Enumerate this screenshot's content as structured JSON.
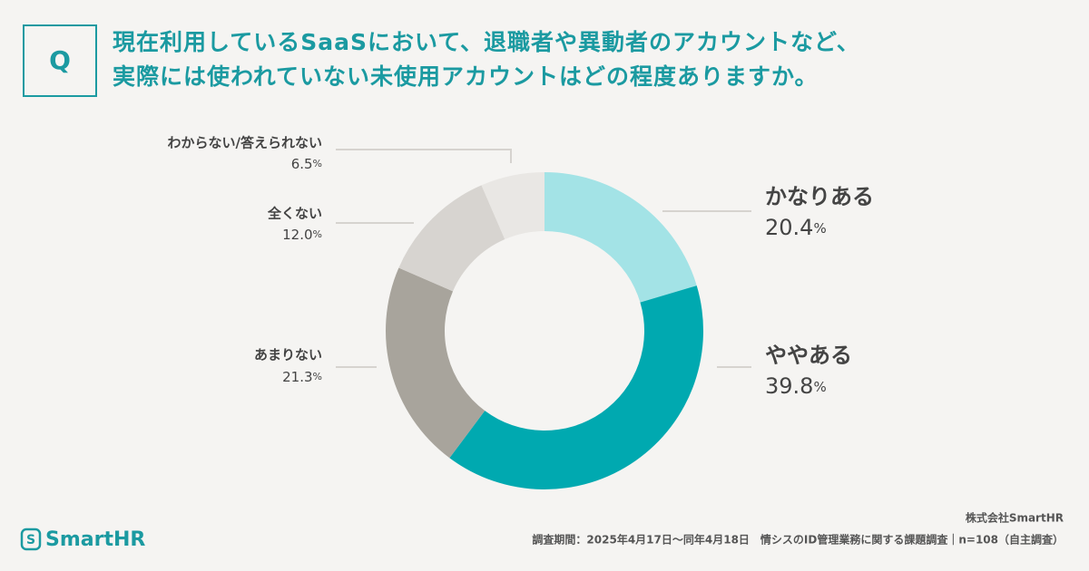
{
  "header": {
    "q_mark": "Q",
    "question": [
      "現在利用しているSaaSにおいて、退職者や異動者のアカウントなど、",
      "実際には使われていない未使用アカウントはどの程度ありますか。"
    ]
  },
  "chart_data": {
    "type": "donut",
    "categories": [
      "かなりある",
      "ややある",
      "あまりない",
      "全くない",
      "わからない/答えられない"
    ],
    "values": [
      20.4,
      39.8,
      21.3,
      12.0,
      6.5
    ],
    "value_labels": [
      "20.4%",
      "39.8%",
      "21.3%",
      "12.0%",
      "6.5%"
    ],
    "colors": [
      "#a3e3e6",
      "#00a9b0",
      "#a8a49c",
      "#d7d4d0",
      "#e9e7e4"
    ]
  },
  "footer": {
    "logo": "SmartHR",
    "company": "株式会社SmartHR",
    "note": "調査期間：2025年4月17日〜同年4月18日　情シスのID管理業務に関する課題調査｜n=108（自主調査）"
  }
}
